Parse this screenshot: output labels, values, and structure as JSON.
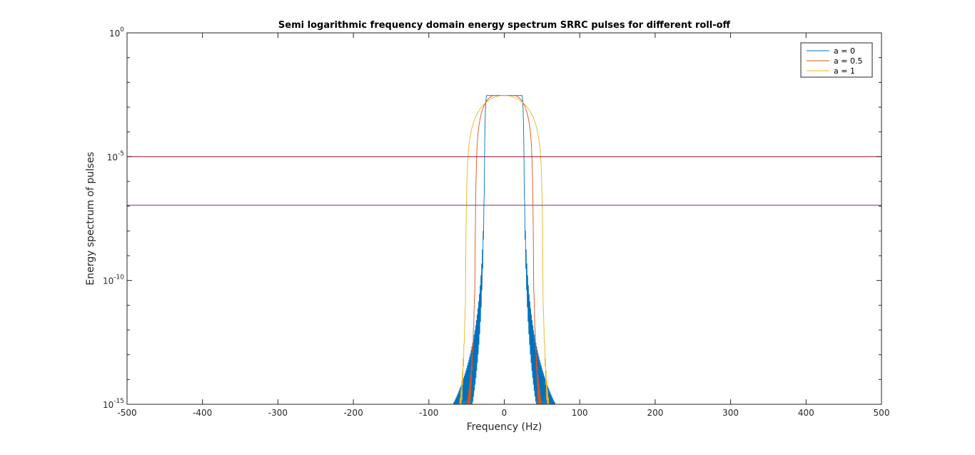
{
  "chart_data": {
    "type": "line",
    "title": "Semi logarithmic  frequency domain energy spectrum SRRC pulses for different roll-off",
    "xlabel": "Frequency (Hz)",
    "ylabel": "Energy spectrum of pulses",
    "xlim": [
      -500,
      500
    ],
    "ylim": [
      1e-15,
      1
    ],
    "yscale": "log",
    "xticks": [
      -500,
      -400,
      -300,
      -200,
      -100,
      0,
      100,
      200,
      300,
      400,
      500
    ],
    "xtick_labels": [
      "-500",
      "-400",
      "-300",
      "-200",
      "-100",
      "0",
      "100",
      "200",
      "300",
      "400",
      "500"
    ],
    "yticks": [
      {
        "value": 1,
        "base": "10",
        "exp": "0"
      },
      {
        "value": 1e-05,
        "base": "10",
        "exp": "-5"
      },
      {
        "value": 1e-10,
        "base": "10",
        "exp": "-10"
      },
      {
        "value": 1e-15,
        "base": "10",
        "exp": "-15"
      }
    ],
    "grid": false,
    "legend_position": "top-right",
    "symbol_period_s": 0.02,
    "series": [
      {
        "name": "a = 0",
        "rolloff": 0,
        "color": "#0072BD"
      },
      {
        "name": "a = 0.5",
        "rolloff": 0.5,
        "color": "#D95319"
      },
      {
        "name": "a = 1",
        "rolloff": 1,
        "color": "#EDB120"
      }
    ],
    "reference_lines": [
      {
        "y": 1e-05,
        "color": "#A2142F"
      },
      {
        "y": 1.1e-07,
        "color": "#7E2F8E"
      }
    ]
  }
}
